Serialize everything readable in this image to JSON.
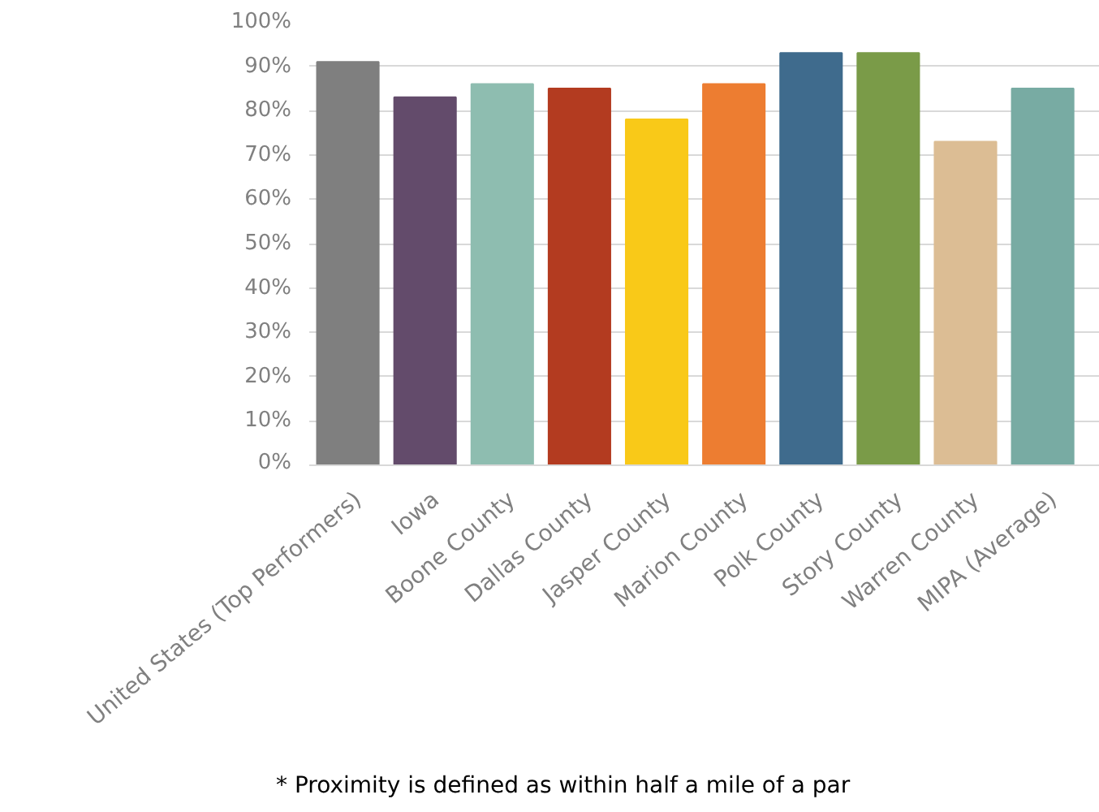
{
  "chart_data": {
    "type": "bar",
    "categories": [
      "United States (Top Performers)",
      "Iowa",
      "Boone County",
      "Dallas County",
      "Jasper County",
      "Marion County",
      "Polk County",
      "Story County",
      "Warren County",
      "MIPA (Average)"
    ],
    "values": [
      91,
      83,
      86,
      85,
      78,
      86,
      93,
      93,
      73,
      85
    ],
    "colors": [
      "#7f7f7f",
      "#634b6b",
      "#8ebdb0",
      "#b33b20",
      "#f9c918",
      "#ed7d31",
      "#3f6b8d",
      "#7a9b48",
      "#dcbd94",
      "#78aba3"
    ],
    "ylim": [
      0,
      100
    ],
    "yticks": [
      {
        "value": 0,
        "label": "0%"
      },
      {
        "value": 10,
        "label": "10%"
      },
      {
        "value": 20,
        "label": "20%"
      },
      {
        "value": 30,
        "label": "30%"
      },
      {
        "value": 40,
        "label": "40%"
      },
      {
        "value": 50,
        "label": "50%"
      },
      {
        "value": 60,
        "label": "60%"
      },
      {
        "value": 70,
        "label": "70%"
      },
      {
        "value": 80,
        "label": "80%"
      },
      {
        "value": 90,
        "label": "90%"
      },
      {
        "value": 100,
        "label": "100%"
      }
    ],
    "grid": "y",
    "annotations": [
      "* Proximity is defined as within half a mile of a par"
    ]
  }
}
